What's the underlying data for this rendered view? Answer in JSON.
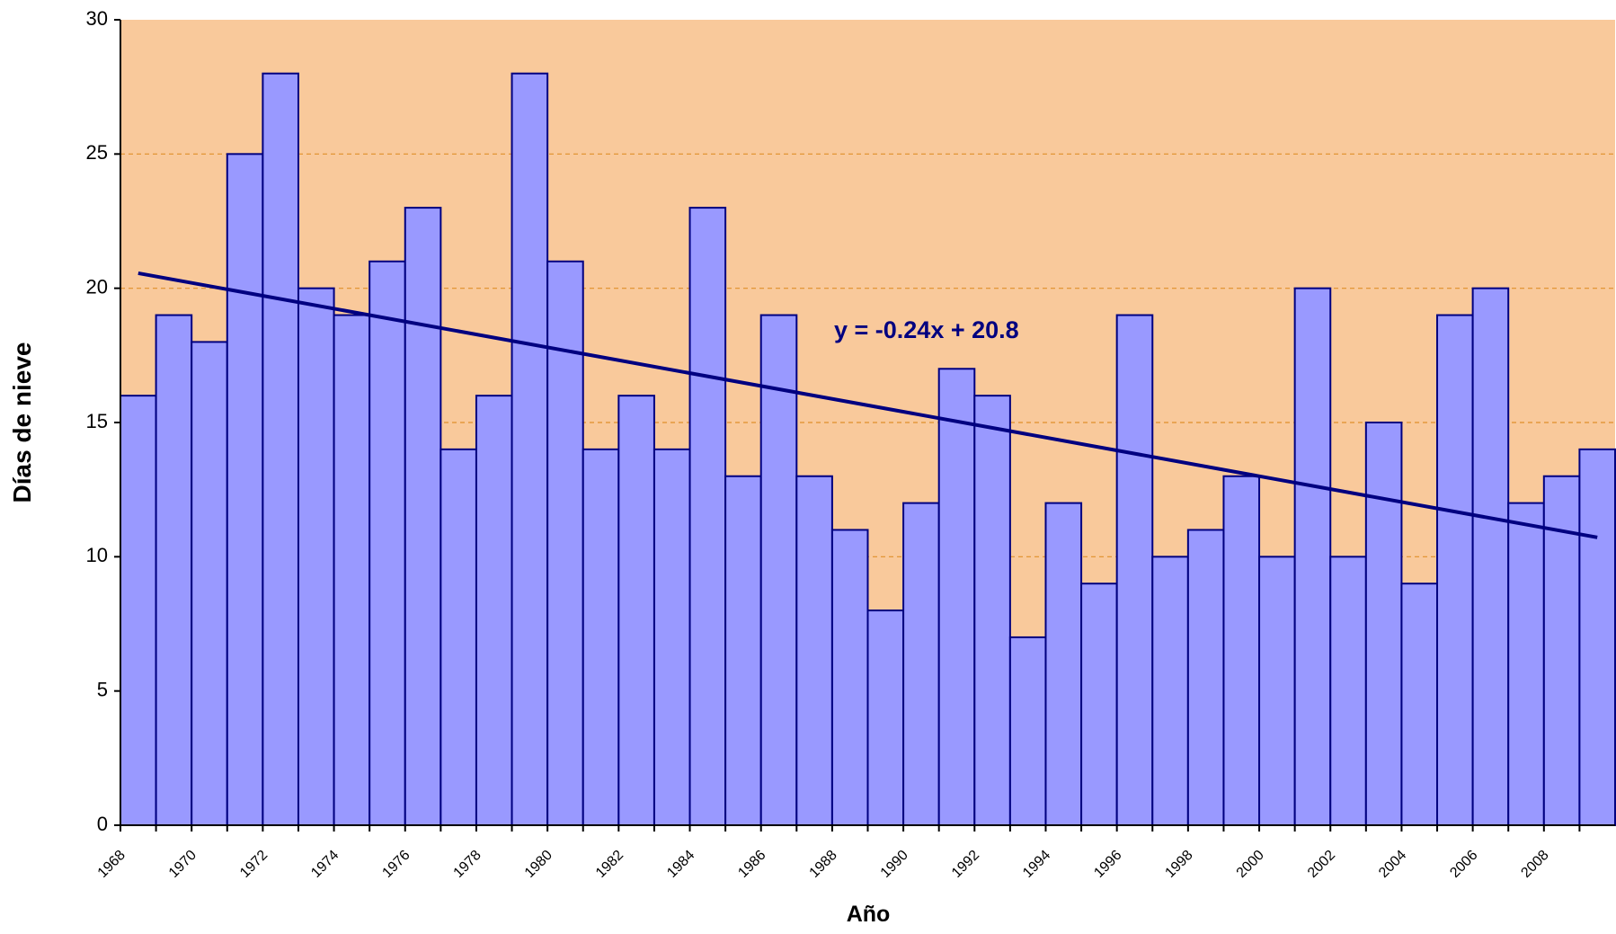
{
  "chart_data": {
    "type": "bar",
    "x_label": "Año",
    "y_label": "Días de nieve",
    "categories": [
      "1968",
      null,
      "1970",
      null,
      "1972",
      null,
      "1974",
      null,
      "1976",
      null,
      "1978",
      null,
      "1980",
      null,
      "1982",
      null,
      "1984",
      null,
      "1986",
      null,
      "1988",
      null,
      "1990",
      null,
      "1992",
      null,
      "1994",
      null,
      "1996",
      null,
      "1998",
      null,
      "2000",
      null,
      "2002",
      null,
      "2004",
      null,
      "2006",
      null,
      "2008",
      null
    ],
    "values": [
      16,
      19,
      18,
      25,
      28,
      20,
      19,
      21,
      23,
      14,
      16,
      28,
      21,
      14,
      16,
      14,
      23,
      13,
      19,
      13,
      11,
      8,
      12,
      17,
      16,
      7,
      12,
      9,
      19,
      10,
      11,
      13,
      10,
      20,
      10,
      15,
      9,
      19,
      20,
      12,
      13,
      14
    ],
    "color": "#9999ff",
    "edge_color": "#000080",
    "background": "#f9c99b",
    "ylim": [
      0,
      30
    ],
    "yticks": [
      0,
      5,
      10,
      15,
      20,
      25,
      30
    ],
    "grid": true,
    "trendline": {
      "label": "y = -0.24x + 20.8",
      "slope": -0.24,
      "intercept": 20.8,
      "color": "#000080"
    }
  }
}
